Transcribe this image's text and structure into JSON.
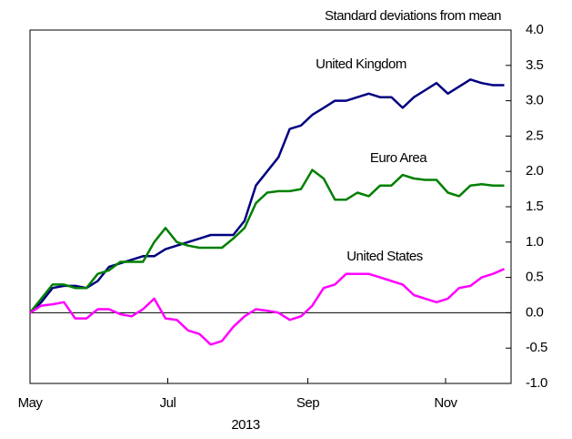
{
  "chart_data": {
    "type": "line",
    "y_label": "Standard deviations from mean",
    "x_label": "2013",
    "x": [
      0,
      5,
      10,
      15,
      20,
      25,
      30,
      35,
      40,
      45,
      50,
      55,
      60,
      65,
      70,
      75,
      80,
      85,
      90,
      95,
      100,
      105,
      110,
      115,
      120,
      125,
      130,
      135,
      140,
      145,
      150,
      155,
      160,
      165,
      170,
      175,
      180,
      185,
      190,
      195,
      200,
      205,
      210
    ],
    "xlim": [
      0,
      213
    ],
    "xticks": [
      {
        "value": 0,
        "label": "May"
      },
      {
        "value": 61,
        "label": "Jul"
      },
      {
        "value": 123,
        "label": "Sep"
      },
      {
        "value": 184,
        "label": "Nov"
      }
    ],
    "ylim": [
      -1,
      4
    ],
    "yticks": [
      {
        "value": 4,
        "label": "4.0"
      },
      {
        "value": 3.5,
        "label": "3.5"
      },
      {
        "value": 3,
        "label": "3.0"
      },
      {
        "value": 2.5,
        "label": "2.5"
      },
      {
        "value": 2,
        "label": "2.0"
      },
      {
        "value": 1.5,
        "label": "1.5"
      },
      {
        "value": 1,
        "label": "1.0"
      },
      {
        "value": 0.5,
        "label": "0.5"
      },
      {
        "value": 0,
        "label": "0.0"
      },
      {
        "value": -0.5,
        "label": "-0.5"
      },
      {
        "value": -1,
        "label": "-1.0"
      }
    ],
    "series": [
      {
        "name": "United Kingdom",
        "color": "#000080",
        "values": [
          0.0,
          0.15,
          0.35,
          0.38,
          0.38,
          0.35,
          0.45,
          0.65,
          0.7,
          0.75,
          0.8,
          0.8,
          0.9,
          0.95,
          1.0,
          1.05,
          1.1,
          1.1,
          1.1,
          1.3,
          1.8,
          2.0,
          2.2,
          2.6,
          2.65,
          2.8,
          2.9,
          3.0,
          3.0,
          3.05,
          3.1,
          3.05,
          3.05,
          2.9,
          3.05,
          3.15,
          3.25,
          3.1,
          3.2,
          3.3,
          3.25,
          3.22,
          3.22
        ]
      },
      {
        "name": "Euro Area",
        "color": "#008000",
        "values": [
          0.0,
          0.2,
          0.4,
          0.4,
          0.35,
          0.35,
          0.55,
          0.6,
          0.72,
          0.72,
          0.72,
          1.0,
          1.2,
          1.0,
          0.95,
          0.92,
          0.92,
          0.92,
          1.05,
          1.2,
          1.55,
          1.7,
          1.72,
          1.72,
          1.75,
          2.02,
          1.9,
          1.6,
          1.6,
          1.7,
          1.65,
          1.8,
          1.8,
          1.95,
          1.9,
          1.88,
          1.88,
          1.7,
          1.65,
          1.8,
          1.82,
          1.8,
          1.8
        ]
      },
      {
        "name": "United States",
        "color": "#ff00ff",
        "values": [
          0.0,
          0.1,
          0.12,
          0.15,
          -0.08,
          -0.08,
          0.05,
          0.05,
          -0.02,
          -0.05,
          0.05,
          0.2,
          -0.08,
          -0.1,
          -0.25,
          -0.3,
          -0.45,
          -0.4,
          -0.2,
          -0.05,
          0.05,
          0.03,
          0.0,
          -0.1,
          -0.05,
          0.1,
          0.35,
          0.4,
          0.55,
          0.55,
          0.55,
          0.5,
          0.45,
          0.4,
          0.25,
          0.2,
          0.15,
          0.2,
          0.35,
          0.38,
          0.5,
          0.55,
          0.62
        ]
      }
    ]
  }
}
